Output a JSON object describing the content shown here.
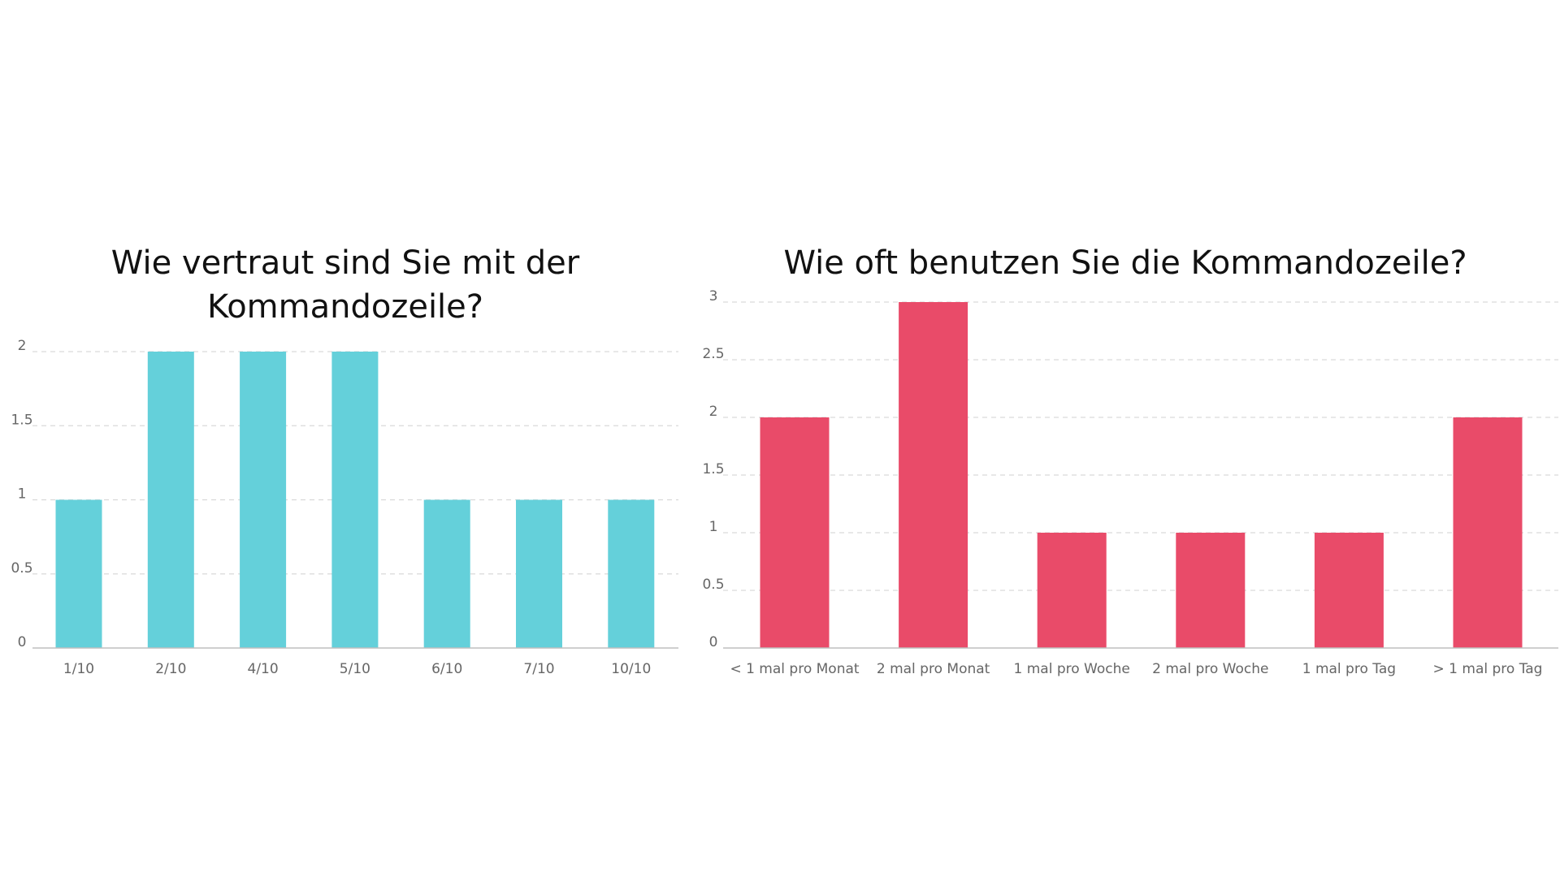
{
  "chart_data": [
    {
      "type": "bar",
      "title": "Wie vertraut sind Sie mit der Kommandozeile?",
      "title_lines": [
        "Wie vertraut sind Sie mit der",
        "Kommandozeile?"
      ],
      "categories": [
        "1/10",
        "2/10",
        "4/10",
        "5/10",
        "6/10",
        "7/10",
        "10/10"
      ],
      "values": [
        1,
        2,
        2,
        2,
        1,
        1,
        1
      ],
      "xlabel": "",
      "ylabel": "",
      "ylim": [
        0,
        2
      ],
      "yticks": [
        0,
        0.5,
        1,
        1.5,
        2
      ],
      "ytick_labels": [
        "0",
        "0.5",
        "1",
        "1.5",
        "2"
      ],
      "grid": true,
      "legend": "none",
      "color": "#64D0DA"
    },
    {
      "type": "bar",
      "title": "Wie oft benutzen Sie die Kommandozeile?",
      "title_lines": [
        "Wie oft benutzen Sie die Kommandozeile?"
      ],
      "categories": [
        "< 1 mal pro Monat",
        "2 mal pro Monat",
        "1 mal pro Woche",
        "2 mal pro Woche",
        "1 mal pro Tag",
        "> 1 mal pro Tag"
      ],
      "values": [
        2,
        3,
        1,
        1,
        1,
        2
      ],
      "xlabel": "",
      "ylabel": "",
      "ylim": [
        0,
        3
      ],
      "yticks": [
        0,
        0.5,
        1,
        1.5,
        2,
        2.5,
        3
      ],
      "ytick_labels": [
        "0",
        "0.5",
        "1",
        "1.5",
        "2",
        "2.5",
        "3"
      ],
      "grid": true,
      "legend": "none",
      "color": "#E94B69"
    }
  ]
}
